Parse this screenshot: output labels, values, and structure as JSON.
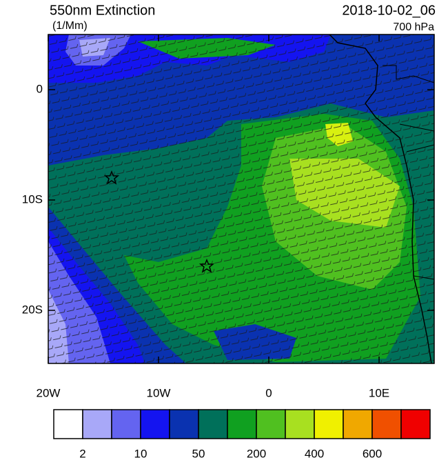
{
  "header": {
    "title": "550nm Extinction",
    "units": "(1/Mm)",
    "time": "2018-10-02_06",
    "level": "700 hPa"
  },
  "map": {
    "lat_labels": [
      "0",
      "10S",
      "20S"
    ],
    "lon_labels": [
      "20W",
      "10W",
      "0",
      "10E"
    ]
  },
  "colorbar": {
    "colors": [
      "#ffffff",
      "#a8a8f8",
      "#6464f0",
      "#1414f0",
      "#0a32b0",
      "#00705a",
      "#10a020",
      "#50c020",
      "#a8e020",
      "#f0f000",
      "#f0a800",
      "#f05000",
      "#f00000"
    ],
    "labels": [
      "2",
      "10",
      "50",
      "200",
      "400",
      "600"
    ]
  }
}
